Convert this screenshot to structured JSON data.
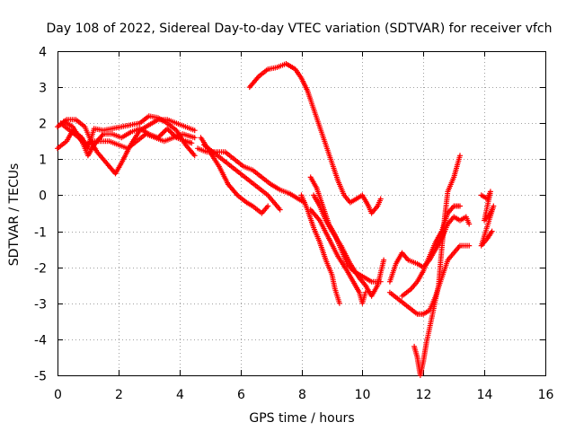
{
  "chart_data": {
    "type": "scatter",
    "title": "Day 108 of 2022, Sidereal Day-to-day VTEC variation (SDTVAR) for receiver vfch",
    "xlabel": "GPS time / hours",
    "ylabel": "SDTVAR / TECUs",
    "xlim": [
      0,
      16
    ],
    "ylim": [
      -5,
      4
    ],
    "xticks": [
      0,
      2,
      4,
      6,
      8,
      10,
      12,
      14,
      16
    ],
    "yticks": [
      -5,
      -4,
      -3,
      -2,
      -1,
      0,
      1,
      2,
      3,
      4
    ],
    "grid": true,
    "marker": "+",
    "color": "#ff0000",
    "series": [
      {
        "points": [
          [
            0.0,
            1.9
          ],
          [
            0.3,
            2.1
          ],
          [
            0.6,
            2.1
          ],
          [
            0.9,
            1.9
          ],
          [
            1.1,
            1.5
          ],
          [
            1.3,
            1.2
          ],
          [
            1.6,
            0.9
          ],
          [
            1.9,
            0.6
          ],
          [
            2.1,
            0.9
          ],
          [
            2.4,
            1.4
          ],
          [
            2.7,
            1.8
          ],
          [
            3.0,
            1.95
          ],
          [
            3.3,
            2.1
          ],
          [
            3.6,
            2.1
          ],
          [
            3.9,
            2.0
          ],
          [
            4.2,
            1.9
          ],
          [
            4.5,
            1.8
          ]
        ]
      },
      {
        "points": [
          [
            0.0,
            1.3
          ],
          [
            0.3,
            1.5
          ],
          [
            0.5,
            1.8
          ],
          [
            0.8,
            1.6
          ],
          [
            1.0,
            1.3
          ],
          [
            1.2,
            1.85
          ],
          [
            1.5,
            1.8
          ],
          [
            1.8,
            1.85
          ],
          [
            2.1,
            1.9
          ],
          [
            2.4,
            1.95
          ],
          [
            2.7,
            2.0
          ],
          [
            3.0,
            2.2
          ],
          [
            3.3,
            2.15
          ],
          [
            3.6,
            2.0
          ],
          [
            3.9,
            1.8
          ],
          [
            4.2,
            1.4
          ],
          [
            4.5,
            1.1
          ]
        ]
      },
      {
        "points": [
          [
            0.1,
            2.0
          ],
          [
            0.4,
            1.8
          ],
          [
            0.7,
            1.6
          ],
          [
            0.9,
            1.4
          ],
          [
            1.1,
            1.5
          ],
          [
            1.4,
            1.5
          ],
          [
            1.7,
            1.5
          ],
          [
            2.0,
            1.4
          ],
          [
            2.3,
            1.3
          ],
          [
            2.6,
            1.5
          ],
          [
            2.9,
            1.7
          ],
          [
            3.2,
            1.6
          ],
          [
            3.5,
            1.5
          ],
          [
            3.8,
            1.6
          ],
          [
            4.1,
            1.7
          ],
          [
            4.5,
            1.6
          ]
        ]
      },
      {
        "points": [
          [
            0.2,
            2.05
          ],
          [
            0.5,
            1.9
          ],
          [
            0.8,
            1.5
          ],
          [
            1.0,
            1.1
          ],
          [
            1.2,
            1.4
          ],
          [
            1.5,
            1.7
          ],
          [
            1.8,
            1.7
          ],
          [
            2.1,
            1.6
          ],
          [
            2.4,
            1.75
          ],
          [
            2.7,
            1.85
          ],
          [
            3.0,
            1.7
          ],
          [
            3.3,
            1.6
          ],
          [
            3.6,
            1.85
          ],
          [
            3.9,
            1.6
          ],
          [
            4.2,
            1.5
          ],
          [
            4.4,
            1.45
          ]
        ]
      },
      {
        "points": [
          [
            4.7,
            1.6
          ],
          [
            5.0,
            1.2
          ],
          [
            5.3,
            0.8
          ],
          [
            5.6,
            0.3
          ],
          [
            5.9,
            0.0
          ],
          [
            6.2,
            -0.2
          ],
          [
            6.4,
            -0.3
          ],
          [
            6.7,
            -0.5
          ],
          [
            6.9,
            -0.3
          ]
        ]
      },
      {
        "points": [
          [
            4.8,
            1.4
          ],
          [
            5.1,
            1.2
          ],
          [
            5.4,
            1.0
          ],
          [
            5.7,
            0.8
          ],
          [
            6.0,
            0.6
          ],
          [
            6.3,
            0.4
          ],
          [
            6.6,
            0.2
          ],
          [
            6.9,
            0.0
          ],
          [
            7.1,
            -0.2
          ],
          [
            7.3,
            -0.4
          ]
        ]
      },
      {
        "points": [
          [
            4.6,
            1.3
          ],
          [
            4.9,
            1.2
          ],
          [
            5.2,
            1.2
          ],
          [
            5.5,
            1.2
          ],
          [
            5.8,
            1.0
          ],
          [
            6.1,
            0.8
          ],
          [
            6.4,
            0.7
          ],
          [
            6.7,
            0.5
          ],
          [
            7.0,
            0.3
          ],
          [
            7.3,
            0.15
          ],
          [
            7.6,
            0.05
          ],
          [
            7.9,
            -0.1
          ],
          [
            8.1,
            -0.2
          ]
        ]
      },
      {
        "points": [
          [
            6.3,
            3.0
          ],
          [
            6.6,
            3.3
          ],
          [
            6.9,
            3.5
          ],
          [
            7.2,
            3.55
          ],
          [
            7.5,
            3.65
          ],
          [
            7.8,
            3.5
          ],
          [
            8.0,
            3.25
          ],
          [
            8.2,
            2.9
          ],
          [
            8.4,
            2.4
          ],
          [
            8.6,
            1.9
          ],
          [
            8.8,
            1.4
          ],
          [
            9.0,
            0.9
          ],
          [
            9.2,
            0.4
          ],
          [
            9.4,
            0.0
          ],
          [
            9.6,
            -0.2
          ],
          [
            9.8,
            -0.1
          ],
          [
            10.0,
            0.0
          ],
          [
            10.2,
            -0.3
          ],
          [
            10.3,
            -0.5
          ],
          [
            10.5,
            -0.3
          ],
          [
            10.6,
            -0.1
          ]
        ]
      },
      {
        "points": [
          [
            8.0,
            0.0
          ],
          [
            8.2,
            -0.4
          ],
          [
            8.4,
            -0.9
          ],
          [
            8.6,
            -1.3
          ],
          [
            8.8,
            -1.8
          ],
          [
            9.0,
            -2.2
          ],
          [
            9.1,
            -2.6
          ],
          [
            9.25,
            -3.0
          ]
        ]
      },
      {
        "points": [
          [
            8.3,
            -0.4
          ],
          [
            8.6,
            -0.7
          ],
          [
            8.9,
            -1.2
          ],
          [
            9.2,
            -1.7
          ],
          [
            9.5,
            -2.1
          ],
          [
            9.7,
            -2.4
          ],
          [
            9.9,
            -2.7
          ],
          [
            10.0,
            -3.0
          ],
          [
            10.1,
            -2.7
          ]
        ]
      },
      {
        "points": [
          [
            8.4,
            0.0
          ],
          [
            8.6,
            -0.3
          ],
          [
            8.8,
            -0.7
          ],
          [
            9.0,
            -1.0
          ],
          [
            9.3,
            -1.4
          ],
          [
            9.6,
            -1.9
          ],
          [
            9.9,
            -2.3
          ],
          [
            10.1,
            -2.5
          ],
          [
            10.3,
            -2.8
          ],
          [
            10.5,
            -2.5
          ],
          [
            10.7,
            -1.8
          ]
        ]
      },
      {
        "points": [
          [
            8.3,
            0.5
          ],
          [
            8.5,
            0.2
          ],
          [
            8.7,
            -0.3
          ],
          [
            8.9,
            -0.8
          ],
          [
            9.1,
            -1.1
          ],
          [
            9.3,
            -1.5
          ],
          [
            9.5,
            -1.9
          ],
          [
            9.7,
            -2.1
          ],
          [
            9.9,
            -2.2
          ],
          [
            10.1,
            -2.3
          ],
          [
            10.3,
            -2.4
          ],
          [
            10.6,
            -2.4
          ]
        ]
      },
      {
        "points": [
          [
            10.9,
            -2.4
          ],
          [
            11.1,
            -1.9
          ],
          [
            11.3,
            -1.6
          ],
          [
            11.5,
            -1.8
          ],
          [
            11.8,
            -1.9
          ],
          [
            12.0,
            -2.0
          ],
          [
            12.2,
            -1.8
          ],
          [
            12.4,
            -1.5
          ],
          [
            12.6,
            -1.2
          ],
          [
            12.8,
            -0.8
          ],
          [
            13.0,
            -0.6
          ],
          [
            13.2,
            -0.7
          ],
          [
            13.4,
            -0.6
          ],
          [
            13.5,
            -0.8
          ]
        ]
      },
      {
        "points": [
          [
            10.9,
            -2.7
          ],
          [
            11.2,
            -2.9
          ],
          [
            11.5,
            -3.1
          ],
          [
            11.8,
            -3.3
          ],
          [
            12.0,
            -3.3
          ],
          [
            12.2,
            -3.2
          ],
          [
            12.4,
            -2.8
          ],
          [
            12.6,
            -2.3
          ],
          [
            12.8,
            -1.8
          ],
          [
            13.0,
            -1.6
          ],
          [
            13.2,
            -1.4
          ],
          [
            13.5,
            -1.4
          ]
        ]
      },
      {
        "points": [
          [
            11.3,
            -2.8
          ],
          [
            11.6,
            -2.6
          ],
          [
            11.8,
            -2.4
          ],
          [
            12.0,
            -2.1
          ],
          [
            12.2,
            -1.7
          ],
          [
            12.4,
            -1.3
          ],
          [
            12.6,
            -1.0
          ],
          [
            12.8,
            -0.5
          ],
          [
            13.0,
            -0.3
          ],
          [
            13.2,
            -0.3
          ]
        ]
      },
      {
        "points": [
          [
            11.7,
            -4.2
          ],
          [
            11.8,
            -4.5
          ],
          [
            11.9,
            -5.0
          ],
          [
            12.0,
            -4.6
          ],
          [
            12.1,
            -4.1
          ],
          [
            12.3,
            -3.3
          ],
          [
            12.5,
            -2.5
          ],
          [
            12.6,
            -1.5
          ],
          [
            12.7,
            -0.6
          ],
          [
            12.8,
            0.1
          ],
          [
            13.0,
            0.5
          ],
          [
            13.1,
            0.8
          ],
          [
            13.2,
            1.1
          ]
        ]
      },
      {
        "points": [
          [
            13.9,
            0.0
          ],
          [
            14.1,
            -0.1
          ],
          [
            14.2,
            0.1
          ],
          [
            14.0,
            -0.7
          ],
          [
            14.2,
            -0.5
          ],
          [
            14.3,
            -0.3
          ],
          [
            13.9,
            -1.4
          ],
          [
            14.1,
            -1.2
          ],
          [
            14.25,
            -1.0
          ]
        ]
      }
    ]
  }
}
